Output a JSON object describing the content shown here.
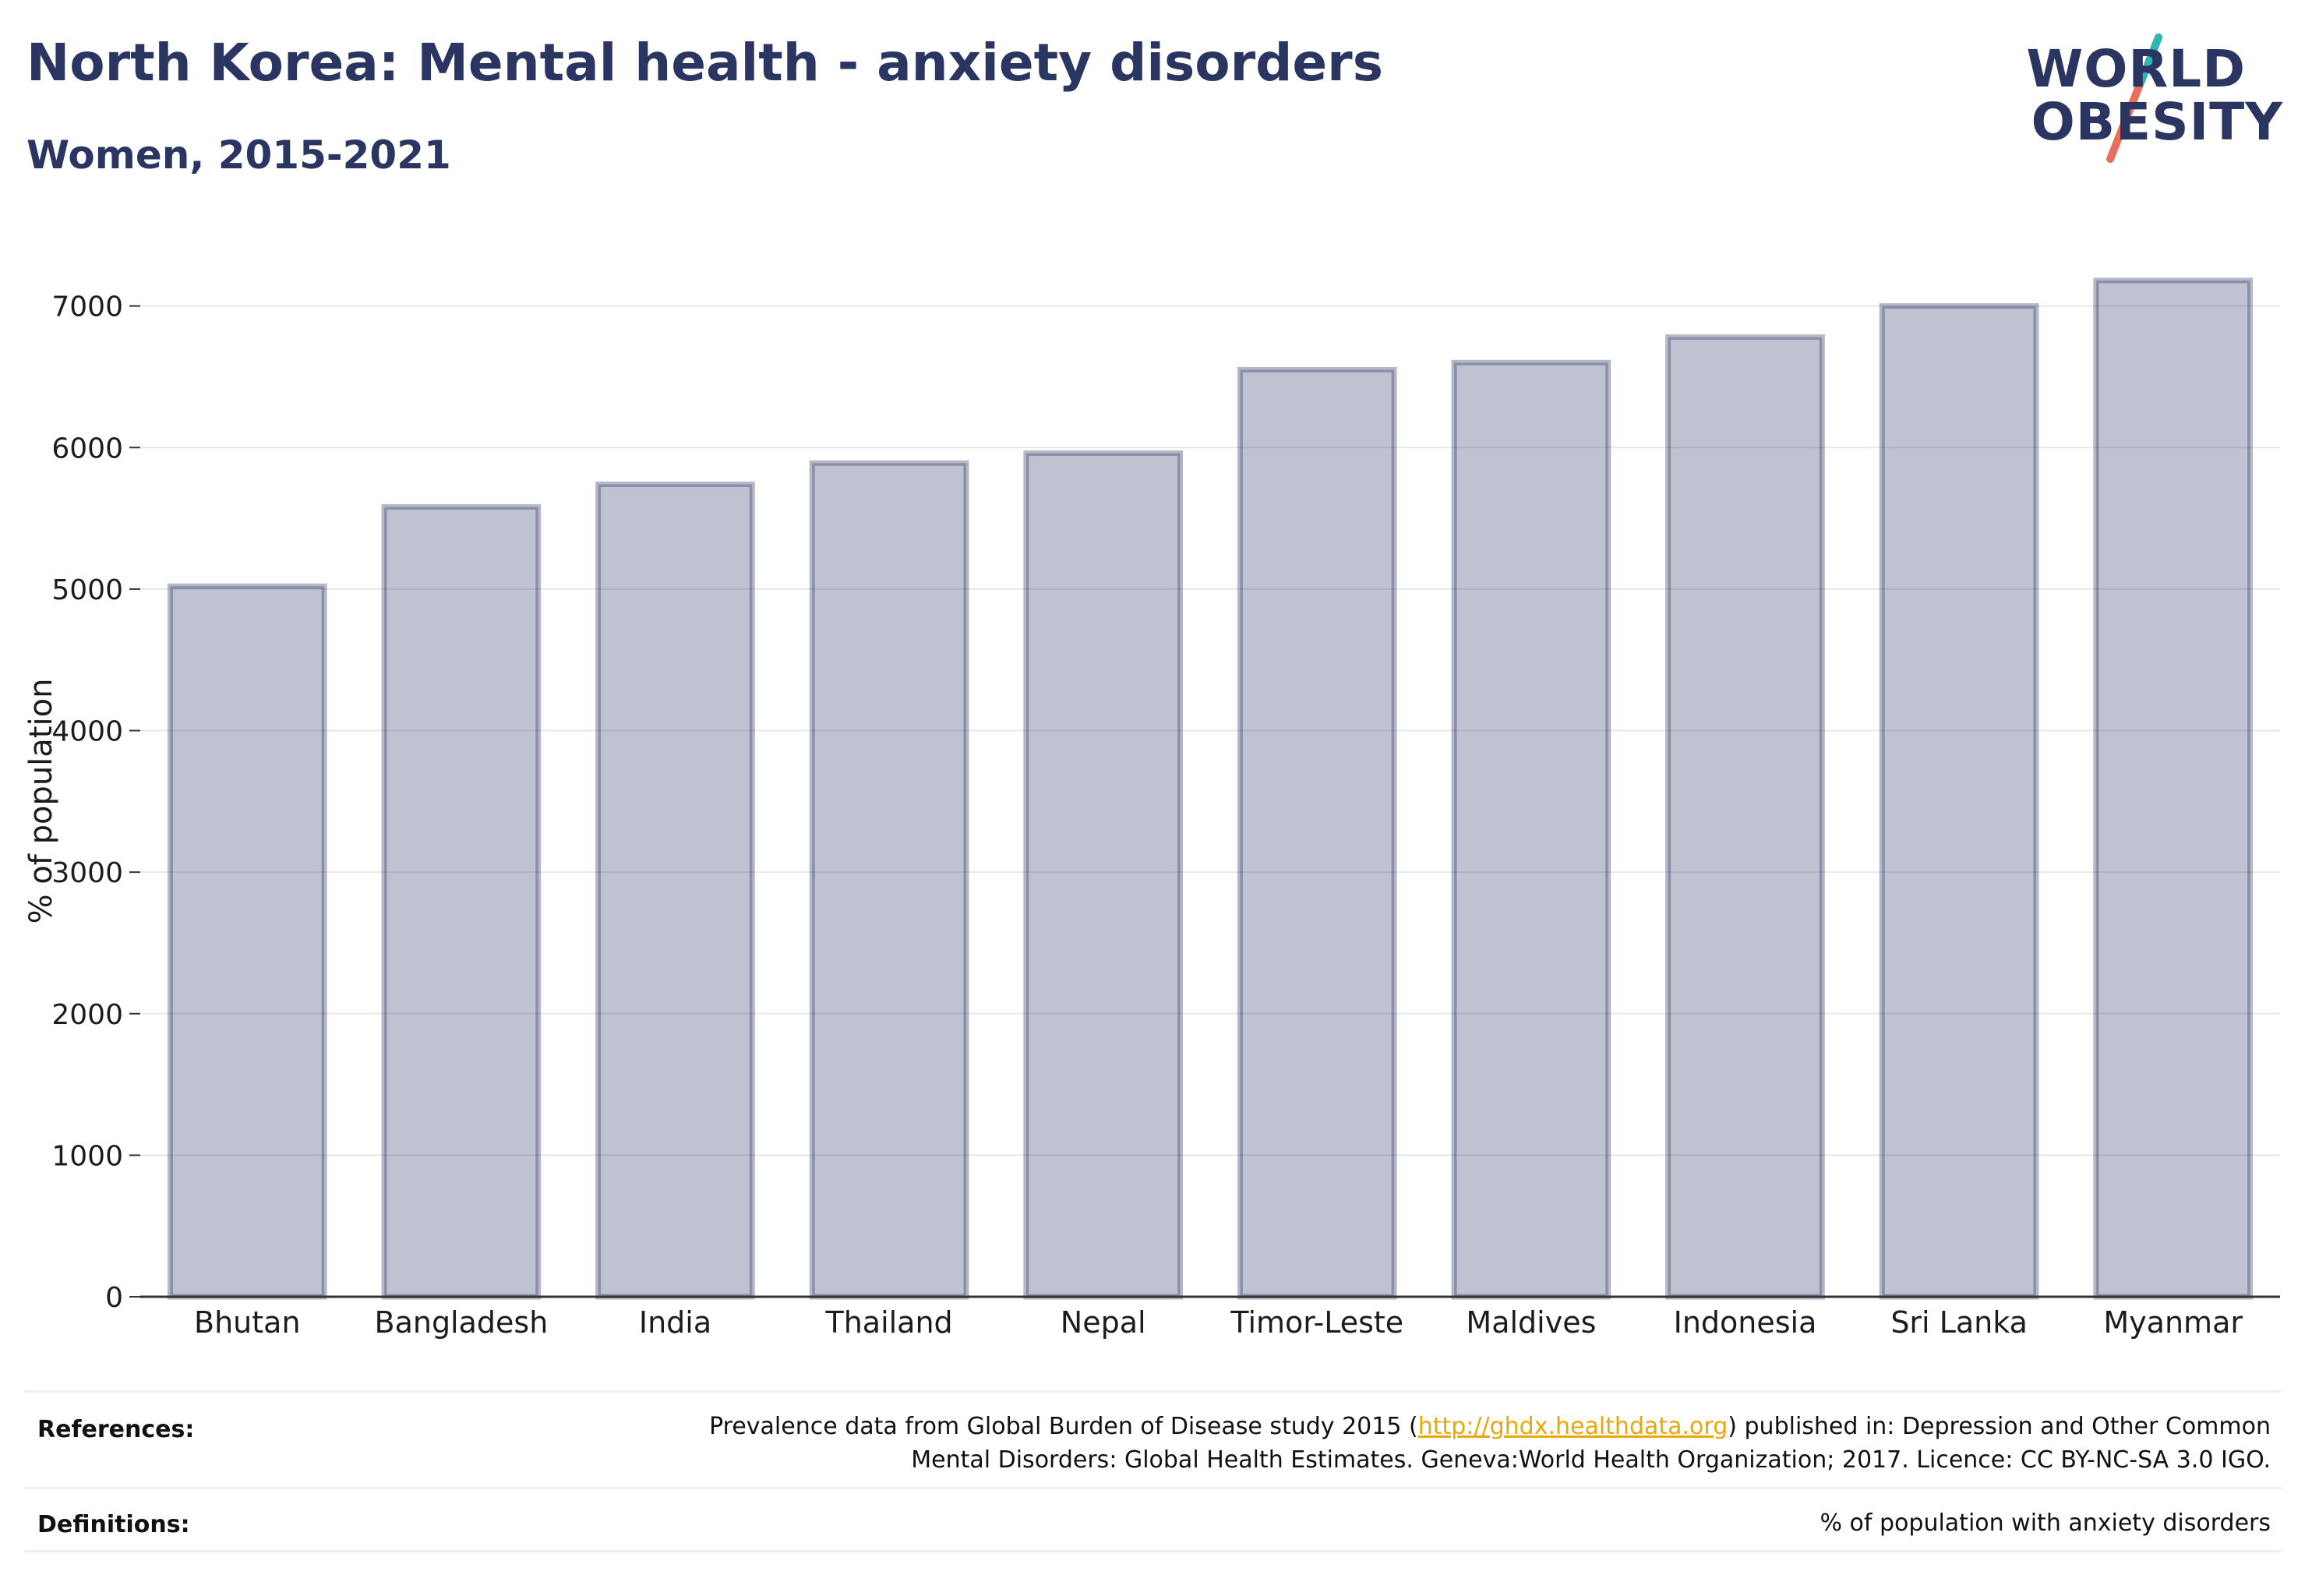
{
  "header": {
    "title": "North Korea: Mental health - anxiety disorders",
    "subtitle": "Women, 2015-2021"
  },
  "logo": {
    "line1": "WORLD",
    "line2": "OBESITY",
    "colors": {
      "text": "#2b3562",
      "slash_top": "#2fb8b2",
      "slash_bottom": "#e8705a"
    }
  },
  "chart_data": {
    "type": "bar",
    "title": "North Korea: Mental health - anxiety disorders",
    "subtitle": "Women, 2015-2021",
    "xlabel": "",
    "ylabel": "% of population",
    "categories": [
      "Bhutan",
      "Bangladesh",
      "India",
      "Thailand",
      "Nepal",
      "Timor-Leste",
      "Maldives",
      "Indonesia",
      "Sri Lanka",
      "Myanmar"
    ],
    "values": [
      5020,
      5580,
      5740,
      5890,
      5960,
      6550,
      6600,
      6780,
      7000,
      7180
    ],
    "ylim": [
      0,
      7400
    ],
    "yticks": [
      0,
      1000,
      2000,
      3000,
      4000,
      5000,
      6000,
      7000
    ],
    "grid": true,
    "legend": "none",
    "bar_fill": "#2b3562",
    "bar_fill_opacity": 0.3
  },
  "footer": {
    "references_label": "References:",
    "references_text_line1_pre": "Prevalence data from Global Burden of Disease study 2015 (",
    "references_link": "http://ghdx.healthdata.org",
    "references_text_line1_post": ") published in: Depression and Other Common",
    "references_text_line2": "Mental Disorders: Global Health Estimates. Geneva:World Health Organization; 2017. Licence: CC BY-NC-SA 3.0 IGO.",
    "definitions_label": "Definitions:",
    "definitions_text": "% of population with anxiety disorders"
  }
}
